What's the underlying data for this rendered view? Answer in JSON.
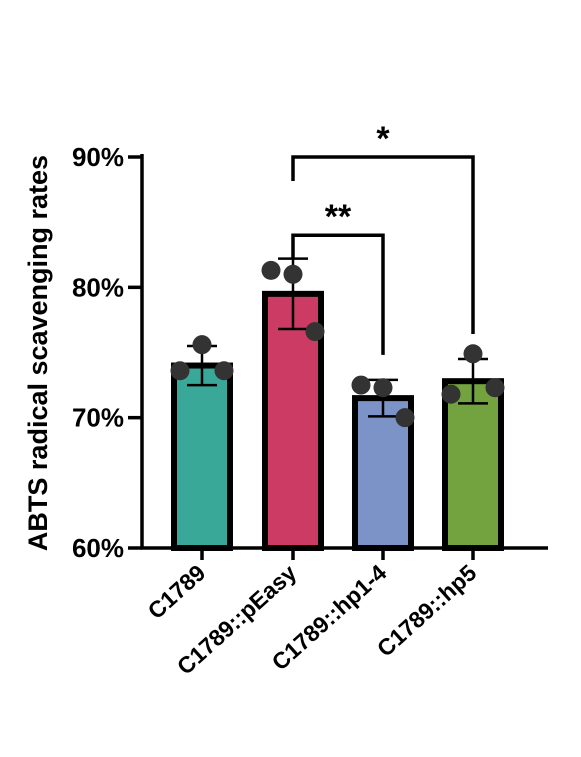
{
  "chart_data": {
    "type": "bar",
    "title": "",
    "xlabel": "",
    "ylabel": "ABTS radical scavenging rates",
    "ylim": [
      60,
      90
    ],
    "yticks": [
      60,
      70,
      80,
      90
    ],
    "ytick_labels": [
      "60%",
      "70%",
      "80%",
      "90%"
    ],
    "categories": [
      "C1789",
      "C1789::pEasy",
      "C1789::hp1-4",
      "C1789::hp5"
    ],
    "values": [
      74.0,
      79.5,
      71.5,
      72.8
    ],
    "errors": [
      1.5,
      2.7,
      1.4,
      1.7
    ],
    "colors": [
      "#3aa899",
      "#cc3b63",
      "#7b93c6",
      "#73a33e"
    ],
    "points": [
      [
        73.6,
        75.6,
        73.6
      ],
      [
        81.3,
        81.0,
        76.6
      ],
      [
        72.5,
        72.3,
        70.0
      ],
      [
        71.8,
        74.9,
        72.3
      ]
    ],
    "significance": [
      {
        "from": 1,
        "to": 2,
        "label": "**",
        "level": 84.0
      },
      {
        "from": 1,
        "to": 3,
        "label": "*",
        "level": 90.0
      }
    ],
    "grid": false,
    "legend": "none"
  }
}
